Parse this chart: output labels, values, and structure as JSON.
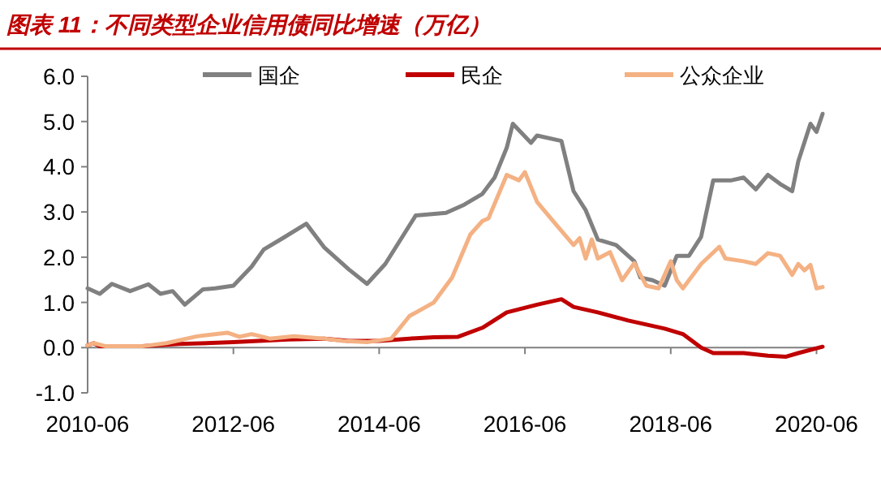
{
  "chart_data": {
    "type": "line",
    "title": "图表 11：不同类型企业信用债同比增速（万亿）",
    "xlim": [
      "2010-06",
      "2020-07"
    ],
    "xticks": [
      "2010-06",
      "2012-06",
      "2014-06",
      "2016-06",
      "2018-06",
      "2020-06"
    ],
    "ylim": [
      -1.0,
      6.0
    ],
    "yticks": [
      {
        "value": -1,
        "label": "-1.0"
      },
      {
        "value": 0,
        "label": "0.0"
      },
      {
        "value": 1,
        "label": "1.0"
      },
      {
        "value": 2,
        "label": "2.0"
      },
      {
        "value": 3,
        "label": "3.0"
      },
      {
        "value": 4,
        "label": "4.0"
      },
      {
        "value": 5,
        "label": "5.0"
      },
      {
        "value": 6,
        "label": "6.0"
      }
    ],
    "legend": "top",
    "marker": "none",
    "line_style": "solid",
    "series": [
      {
        "name": "国企",
        "color": "#808080",
        "x": [
          "2010-06",
          "2010-08",
          "2010-10",
          "2011-01",
          "2011-04",
          "2011-06",
          "2011-08",
          "2011-10",
          "2012-01",
          "2012-03",
          "2012-06",
          "2012-09",
          "2012-11",
          "2013-02",
          "2013-06",
          "2013-09",
          "2014-01",
          "2014-04",
          "2014-07",
          "2014-12",
          "2015-05",
          "2015-08",
          "2015-11",
          "2016-01",
          "2016-03",
          "2016-04",
          "2016-07",
          "2016-08",
          "2016-12",
          "2017-02",
          "2017-04",
          "2017-06",
          "2017-09",
          "2017-12",
          "2018-01",
          "2018-03",
          "2018-05",
          "2018-07",
          "2018-09",
          "2018-11",
          "2019-01",
          "2019-04",
          "2019-06",
          "2019-08",
          "2019-10",
          "2019-12",
          "2020-02",
          "2020-03",
          "2020-05",
          "2020-06",
          "2020-07"
        ],
        "values": [
          1.31,
          1.19,
          1.41,
          1.25,
          1.4,
          1.19,
          1.25,
          0.95,
          1.29,
          1.31,
          1.37,
          1.79,
          2.17,
          2.41,
          2.74,
          2.21,
          1.73,
          1.41,
          1.85,
          2.92,
          2.98,
          3.16,
          3.4,
          3.76,
          4.42,
          4.95,
          4.53,
          4.69,
          4.57,
          3.46,
          3.04,
          2.39,
          2.27,
          1.91,
          1.55,
          1.49,
          1.37,
          2.03,
          2.03,
          2.45,
          3.7,
          3.7,
          3.76,
          3.5,
          3.82,
          3.62,
          3.46,
          4.12,
          4.95,
          4.77,
          5.17
        ]
      },
      {
        "name": "民企",
        "color": "#c00000",
        "x": [
          "2010-06",
          "2010-07",
          "2010-08",
          "2011-03",
          "2011-09",
          "2012-06",
          "2013-03",
          "2013-09",
          "2014-01",
          "2014-06",
          "2014-11",
          "2015-03",
          "2015-07",
          "2015-11",
          "2016-03",
          "2016-08",
          "2016-12",
          "2017-02",
          "2017-06",
          "2017-11",
          "2018-05",
          "2018-08",
          "2018-11",
          "2019-01",
          "2019-06",
          "2019-10",
          "2020-01",
          "2020-03",
          "2020-07"
        ],
        "values": [
          0.05,
          0.1,
          0.03,
          0.03,
          0.08,
          0.12,
          0.18,
          0.2,
          0.15,
          0.15,
          0.2,
          0.23,
          0.24,
          0.44,
          0.78,
          0.95,
          1.07,
          0.9,
          0.78,
          0.6,
          0.42,
          0.3,
          0.0,
          -0.12,
          -0.12,
          -0.18,
          -0.2,
          -0.12,
          0.02
        ]
      },
      {
        "name": "公众企业",
        "color": "#f4b183",
        "x": [
          "2010-06",
          "2010-07",
          "2010-09",
          "2011-03",
          "2011-07",
          "2011-12",
          "2012-05",
          "2012-07",
          "2012-09",
          "2012-12",
          "2013-04",
          "2013-09",
          "2013-12",
          "2014-04",
          "2014-08",
          "2014-11",
          "2015-03",
          "2015-06",
          "2015-09",
          "2015-11",
          "2015-12",
          "2016-03",
          "2016-05",
          "2016-06",
          "2016-08",
          "2016-11",
          "2017-02",
          "2017-03",
          "2017-04",
          "2017-05",
          "2017-06",
          "2017-08",
          "2017-10",
          "2017-12",
          "2018-01",
          "2018-02",
          "2018-04",
          "2018-06",
          "2018-07",
          "2018-08",
          "2018-11",
          "2019-02",
          "2019-03",
          "2019-06",
          "2019-08",
          "2019-10",
          "2019-12",
          "2020-02",
          "2020-03",
          "2020-04",
          "2020-05",
          "2020-06",
          "2020-07"
        ],
        "values": [
          0.05,
          0.1,
          0.03,
          0.03,
          0.1,
          0.25,
          0.33,
          0.24,
          0.3,
          0.2,
          0.25,
          0.2,
          0.15,
          0.12,
          0.2,
          0.7,
          1.0,
          1.55,
          2.5,
          2.8,
          2.86,
          3.82,
          3.7,
          3.88,
          3.22,
          2.74,
          2.27,
          2.42,
          1.97,
          2.39,
          1.97,
          2.11,
          1.49,
          1.87,
          1.61,
          1.37,
          1.31,
          1.91,
          1.49,
          1.31,
          1.85,
          2.23,
          1.97,
          1.91,
          1.85,
          2.09,
          2.03,
          1.61,
          1.85,
          1.71,
          1.83,
          1.31,
          1.34
        ]
      }
    ]
  }
}
